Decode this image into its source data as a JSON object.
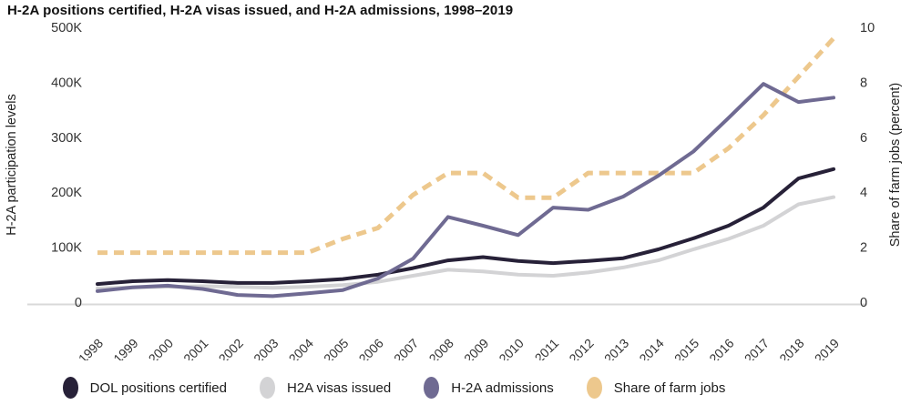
{
  "title": "H-2A positions certified, H-2A visas issued, and H-2A admissions, 1998–2019",
  "y_axis_left": {
    "title": "H-2A participation levels"
  },
  "y_axis_right": {
    "title": "Share of farm jobs (percent)"
  },
  "legend": {
    "items": [
      {
        "label": "DOL positions certified",
        "color": "#272138"
      },
      {
        "label": "H2A visas issued",
        "color": "#d3d3d5"
      },
      {
        "label": "H-2A admissions",
        "color": "#6f6a92"
      },
      {
        "label": "Share of farm jobs",
        "color": "#edc88d"
      }
    ]
  },
  "chart_data": {
    "type": "line",
    "title": "H-2A positions certified, H-2A visas issued, and H-2A admissions, 1998–2019",
    "x": [
      1998,
      1999,
      2000,
      2001,
      2002,
      2003,
      2004,
      2005,
      2006,
      2007,
      2008,
      2009,
      2010,
      2011,
      2012,
      2013,
      2014,
      2015,
      2016,
      2017,
      2018,
      2019
    ],
    "xlabel": "",
    "ylabel_left": "H-2A participation levels",
    "ylabel_right": "Share of farm jobs (percent)",
    "ylim_left_thousands": [
      0,
      500
    ],
    "ylim_right_percent": [
      0,
      10
    ],
    "grid": false,
    "legend_position": "bottom",
    "y_ticks_left": [
      {
        "label": "500K",
        "value": 500
      },
      {
        "label": "400K",
        "value": 400
      },
      {
        "label": "300K",
        "value": 300
      },
      {
        "label": "200K",
        "value": 200
      },
      {
        "label": "100K",
        "value": 100
      },
      {
        "label": "0",
        "value": 0
      }
    ],
    "y_ticks_right": [
      {
        "label": "10",
        "value": 10
      },
      {
        "label": "8",
        "value": 8
      },
      {
        "label": "6",
        "value": 6
      },
      {
        "label": "4",
        "value": 4
      },
      {
        "label": "2",
        "value": 2
      },
      {
        "label": "0",
        "value": 0
      }
    ],
    "series": [
      {
        "name": "DOL positions certified",
        "axis": "left",
        "units": "thousands",
        "style": "solid",
        "color": "#272138",
        "values": [
          33,
          38,
          40,
          38,
          35,
          35,
          38,
          42,
          50,
          62,
          76,
          82,
          75,
          71,
          75,
          80,
          96,
          116,
          139,
          172,
          225,
          242
        ]
      },
      {
        "name": "H2A visas issued",
        "axis": "left",
        "units": "thousands",
        "style": "solid",
        "color": "#d3d3d5",
        "values": [
          25,
          27,
          28,
          29,
          28,
          26,
          28,
          31,
          37,
          48,
          59,
          56,
          50,
          48,
          54,
          63,
          76,
          96,
          115,
          139,
          178,
          191
        ]
      },
      {
        "name": "H-2A admissions",
        "axis": "left",
        "units": "thousands",
        "style": "solid",
        "color": "#6f6a92",
        "values": [
          20,
          27,
          30,
          24,
          13,
          11,
          16,
          22,
          43,
          79,
          155,
          139,
          122,
          172,
          168,
          192,
          230,
          274,
          335,
          397,
          364,
          372
        ]
      },
      {
        "name": "Share of farm jobs",
        "axis": "right",
        "units": "percent",
        "style": "dashed",
        "color": "#edc88d",
        "values": [
          1.8,
          1.8,
          1.8,
          1.8,
          1.8,
          1.8,
          1.8,
          2.3,
          2.7,
          3.9,
          4.7,
          4.7,
          3.8,
          3.8,
          4.7,
          4.7,
          4.7,
          4.7,
          5.6,
          6.8,
          8.2,
          9.6
        ]
      }
    ]
  }
}
